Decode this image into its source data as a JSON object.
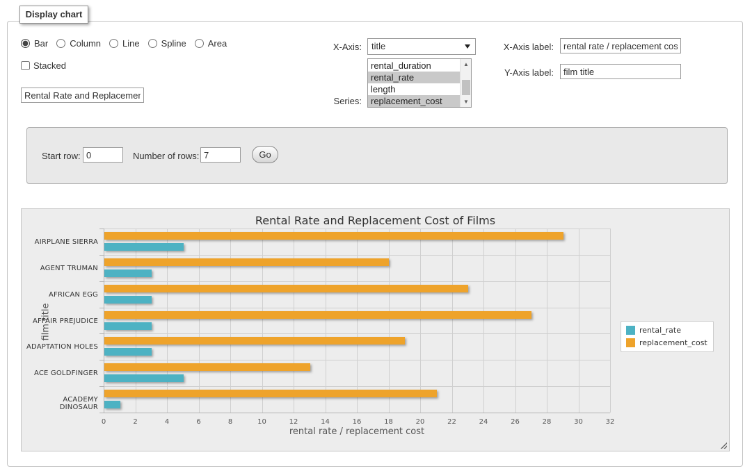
{
  "panel": {
    "legend": "Display chart"
  },
  "chart_type": {
    "options": [
      {
        "label": "Bar",
        "selected": true
      },
      {
        "label": "Column",
        "selected": false
      },
      {
        "label": "Line",
        "selected": false
      },
      {
        "label": "Spline",
        "selected": false
      },
      {
        "label": "Area",
        "selected": false
      }
    ]
  },
  "stacked": {
    "label": "Stacked",
    "checked": false
  },
  "title_input": {
    "value": "Rental Rate and Replacement Cost of Films"
  },
  "x_axis_select": {
    "label": "X-Axis:",
    "selected_value": "title"
  },
  "series_select": {
    "label": "Series:",
    "options": [
      {
        "label": "rental_duration",
        "selected": false
      },
      {
        "label": "rental_rate",
        "selected": true
      },
      {
        "label": "length",
        "selected": false
      },
      {
        "label": "replacement_cost",
        "selected": true
      }
    ]
  },
  "x_axis_label_field": {
    "label": "X-Axis label:",
    "value": "rental rate / replacement cost"
  },
  "y_axis_label_field": {
    "label": "Y-Axis label:",
    "value": "film title"
  },
  "row_controls": {
    "start_row_label": "Start row:",
    "start_row_value": "0",
    "num_rows_label": "Number of rows:",
    "num_rows_value": "7",
    "go_label": "Go"
  },
  "chart_data": {
    "type": "bar",
    "title": "Rental Rate and Replacement Cost of Films",
    "categories": [
      "AIRPLANE SIERRA",
      "AGENT TRUMAN",
      "AFRICAN EGG",
      "AFFAIR PREJUDICE",
      "ADAPTATION HOLES",
      "ACE GOLDFINGER",
      "ACADEMY DINOSAUR"
    ],
    "series": [
      {
        "name": "rental_rate",
        "color": "#4db2c3",
        "values": [
          4.99,
          2.99,
          2.99,
          2.99,
          2.99,
          4.99,
          0.99
        ]
      },
      {
        "name": "replacement_cost",
        "color": "#eea32b",
        "values": [
          28.99,
          17.99,
          22.99,
          26.99,
          18.99,
          12.99,
          20.99
        ]
      }
    ],
    "xlabel": "rental rate / replacement cost",
    "ylabel": "film title",
    "xlim": [
      0,
      32
    ],
    "xticks": [
      0,
      2,
      4,
      6,
      8,
      10,
      12,
      14,
      16,
      18,
      20,
      22,
      24,
      26,
      28,
      30,
      32
    ],
    "grid": true,
    "legend_position": "right"
  }
}
